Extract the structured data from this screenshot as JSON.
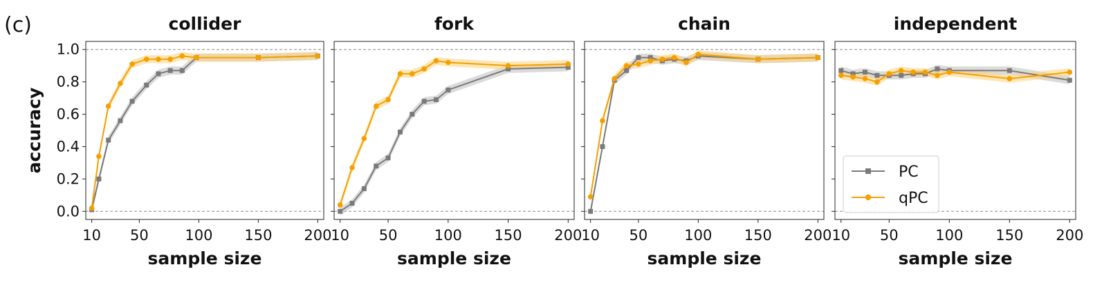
{
  "panel_label": "(c)",
  "colors": {
    "pc": "#7a7a7a",
    "qpc": "#f5a000",
    "pc_band": "#bdbdbd",
    "qpc_band": "#ffd27a",
    "refline": "#888888"
  },
  "chart_data": [
    {
      "type": "line",
      "title": "collider",
      "xlabel": "sample size",
      "ylabel": "accuracy",
      "xlim": [
        5,
        205
      ],
      "ylim": [
        -0.05,
        1.05
      ],
      "xticks": [
        10,
        50,
        100,
        150,
        200
      ],
      "yticks": [
        "0.0",
        "0.2",
        "0.4",
        "0.6",
        "0.8",
        "1.0"
      ],
      "reference_lines": [
        0,
        1
      ],
      "series": [
        {
          "name": "PC",
          "marker": "square",
          "x": [
            10,
            16,
            24,
            34,
            44,
            56,
            66,
            76,
            86,
            98,
            150,
            200
          ],
          "y": [
            0.01,
            0.2,
            0.44,
            0.56,
            0.68,
            0.78,
            0.85,
            0.87,
            0.87,
            0.95,
            0.95,
            0.96
          ]
        },
        {
          "name": "qPC",
          "marker": "circle",
          "x": [
            10,
            16,
            24,
            34,
            44,
            56,
            66,
            76,
            86,
            98,
            150,
            200
          ],
          "y": [
            0.02,
            0.34,
            0.65,
            0.79,
            0.91,
            0.94,
            0.94,
            0.94,
            0.96,
            0.95,
            0.95,
            0.96
          ]
        }
      ]
    },
    {
      "type": "line",
      "title": "fork",
      "xlabel": "sample size",
      "ylabel": "",
      "xlim": [
        5,
        205
      ],
      "ylim": [
        -0.05,
        1.05
      ],
      "xticks": [
        10,
        50,
        100,
        150,
        200
      ],
      "yticks": [],
      "reference_lines": [
        0,
        1
      ],
      "series": [
        {
          "name": "PC",
          "marker": "square",
          "x": [
            10,
            20,
            30,
            40,
            50,
            60,
            70,
            80,
            90,
            100,
            150,
            200
          ],
          "y": [
            0.0,
            0.05,
            0.14,
            0.28,
            0.33,
            0.49,
            0.6,
            0.68,
            0.69,
            0.75,
            0.88,
            0.89
          ]
        },
        {
          "name": "qPC",
          "marker": "circle",
          "x": [
            10,
            20,
            30,
            40,
            50,
            60,
            70,
            80,
            90,
            100,
            150,
            200
          ],
          "y": [
            0.04,
            0.27,
            0.45,
            0.65,
            0.69,
            0.85,
            0.85,
            0.88,
            0.93,
            0.92,
            0.9,
            0.91
          ]
        }
      ]
    },
    {
      "type": "line",
      "title": "chain",
      "xlabel": "sample size",
      "ylabel": "",
      "xlim": [
        5,
        205
      ],
      "ylim": [
        -0.05,
        1.05
      ],
      "xticks": [
        10,
        50,
        100,
        150,
        200
      ],
      "yticks": [],
      "reference_lines": [
        0,
        1
      ],
      "series": [
        {
          "name": "PC",
          "marker": "square",
          "x": [
            10,
            20,
            30,
            40,
            50,
            60,
            70,
            80,
            90,
            100,
            150,
            200
          ],
          "y": [
            0.0,
            0.4,
            0.81,
            0.87,
            0.95,
            0.95,
            0.93,
            0.94,
            0.93,
            0.96,
            0.94,
            0.95
          ]
        },
        {
          "name": "qPC",
          "marker": "circle",
          "x": [
            10,
            20,
            30,
            40,
            50,
            60,
            70,
            80,
            90,
            100,
            150,
            200
          ],
          "y": [
            0.09,
            0.56,
            0.82,
            0.9,
            0.91,
            0.93,
            0.94,
            0.95,
            0.92,
            0.97,
            0.94,
            0.95
          ]
        }
      ]
    },
    {
      "type": "line",
      "title": "independent",
      "xlabel": "sample size",
      "ylabel": "",
      "xlim": [
        5,
        205
      ],
      "ylim": [
        -0.05,
        1.05
      ],
      "xticks": [
        10,
        50,
        100,
        150,
        200
      ],
      "yticks": [],
      "reference_lines": [
        0,
        1
      ],
      "legend": {
        "position": "lower-left",
        "entries": [
          "PC",
          "qPC"
        ]
      },
      "series": [
        {
          "name": "PC",
          "marker": "square",
          "x": [
            10,
            20,
            30,
            40,
            50,
            60,
            70,
            80,
            90,
            100,
            150,
            200
          ],
          "y": [
            0.87,
            0.85,
            0.86,
            0.84,
            0.84,
            0.84,
            0.85,
            0.85,
            0.88,
            0.87,
            0.87,
            0.81
          ]
        },
        {
          "name": "qPC",
          "marker": "circle",
          "x": [
            10,
            20,
            30,
            40,
            50,
            60,
            70,
            80,
            90,
            100,
            150,
            200
          ],
          "y": [
            0.84,
            0.83,
            0.82,
            0.8,
            0.85,
            0.87,
            0.86,
            0.86,
            0.84,
            0.86,
            0.82,
            0.86
          ]
        }
      ]
    }
  ]
}
